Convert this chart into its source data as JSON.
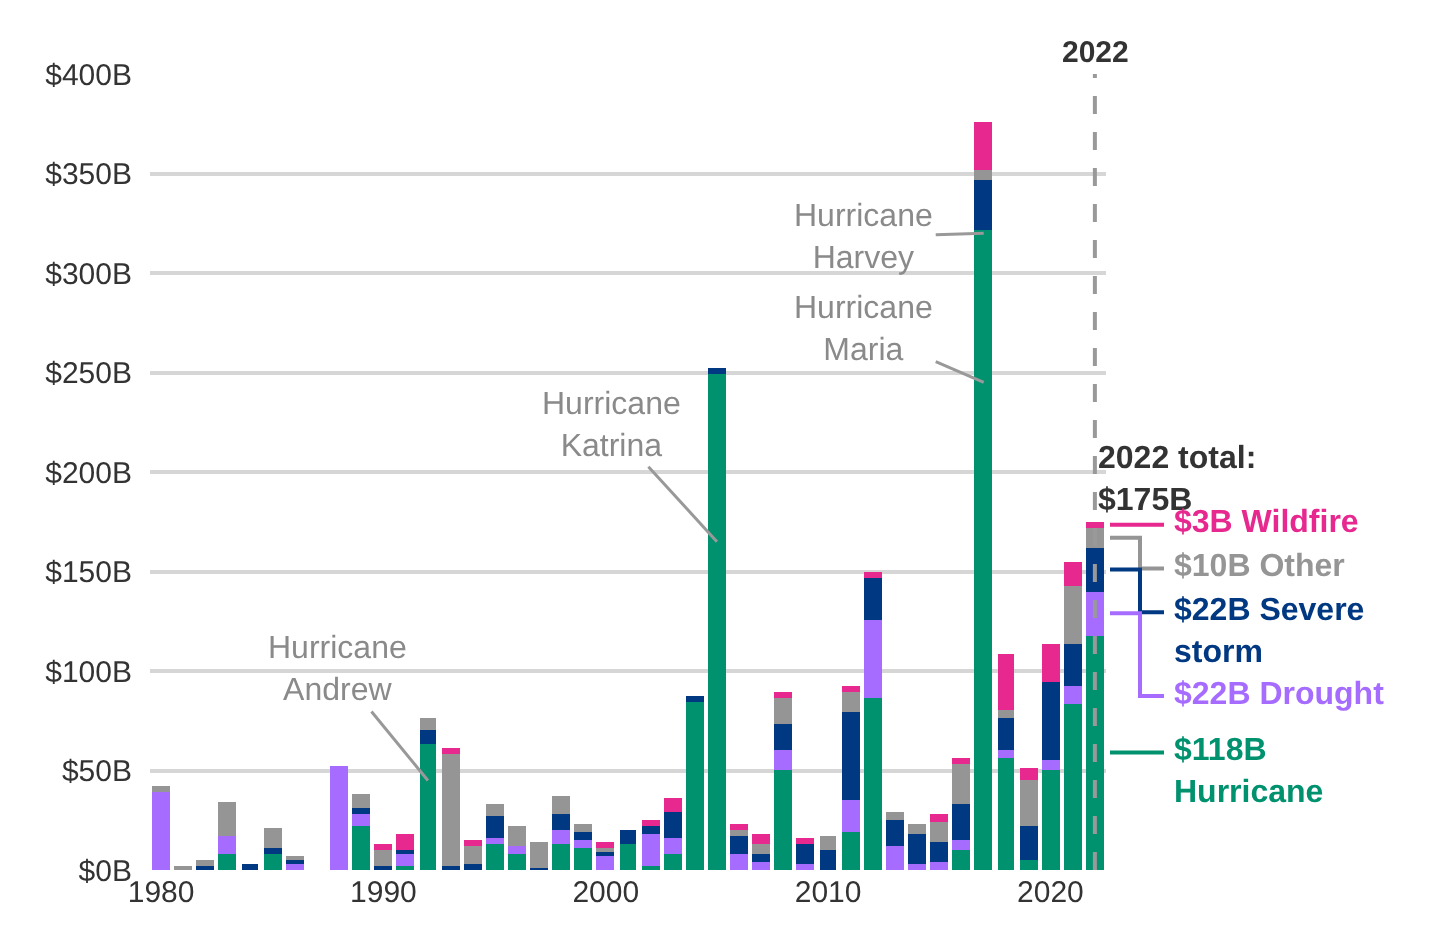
{
  "chart_data": {
    "type": "bar",
    "stacked": true,
    "x": [
      1980,
      1981,
      1982,
      1983,
      1984,
      1985,
      1986,
      1987,
      1988,
      1989,
      1990,
      1991,
      1992,
      1993,
      1994,
      1995,
      1996,
      1997,
      1998,
      1999,
      2000,
      2001,
      2002,
      2003,
      2004,
      2005,
      2006,
      2007,
      2008,
      2009,
      2010,
      2011,
      2012,
      2013,
      2014,
      2015,
      2016,
      2017,
      2018,
      2019,
      2020,
      2021,
      2022
    ],
    "series": [
      {
        "name": "Hurricane",
        "color": "#00916e",
        "values": [
          0,
          0,
          0,
          8,
          0,
          9,
          0,
          0,
          0,
          22,
          1,
          2,
          63,
          0,
          1,
          14,
          8,
          0,
          13,
          11,
          0,
          13,
          2,
          8,
          84,
          249,
          0,
          0,
          50,
          0,
          0,
          19,
          86,
          0,
          0,
          0,
          10,
          322,
          56,
          5,
          50,
          83,
          118
        ],
        "value_labels": [
          null,
          null,
          null,
          null,
          null,
          null,
          null,
          null,
          null,
          null,
          null,
          null,
          null,
          null,
          null,
          null,
          null,
          null,
          null,
          null,
          null,
          null,
          null,
          null,
          null,
          null,
          null,
          null,
          null,
          null,
          null,
          null,
          null,
          null,
          null,
          null,
          null,
          null,
          null,
          null,
          null,
          null,
          "$118B"
        ]
      },
      {
        "name": "Drought",
        "color": "#a66cff",
        "values": [
          39,
          0,
          0,
          9,
          0,
          0,
          4,
          0,
          52,
          7,
          0,
          7,
          0,
          0,
          0,
          2,
          4,
          0,
          7,
          4,
          8,
          0,
          16,
          8,
          0,
          0,
          8,
          4,
          10,
          3,
          0,
          16,
          40,
          12,
          3,
          4,
          5,
          0,
          4,
          0,
          5,
          9,
          22
        ],
        "value_labels": [
          null,
          null,
          null,
          null,
          null,
          null,
          null,
          null,
          null,
          null,
          null,
          null,
          null,
          null,
          null,
          null,
          null,
          null,
          null,
          null,
          null,
          null,
          null,
          null,
          null,
          null,
          null,
          null,
          null,
          null,
          null,
          null,
          null,
          null,
          null,
          null,
          null,
          null,
          null,
          null,
          null,
          null,
          "$22B"
        ]
      },
      {
        "name": "Severe storm",
        "color": "#003882",
        "values": [
          0,
          0,
          2,
          0,
          3,
          2,
          2,
          0,
          0,
          2,
          1,
          1,
          7,
          2,
          2,
          11,
          0,
          1,
          8,
          4,
          1,
          7,
          4,
          13,
          3,
          3,
          10,
          4,
          13,
          11,
          10,
          44,
          21,
          13,
          15,
          10,
          18,
          25,
          16,
          17,
          39,
          22,
          22
        ],
        "value_labels": [
          null,
          null,
          null,
          null,
          null,
          null,
          null,
          null,
          null,
          null,
          null,
          null,
          null,
          null,
          null,
          null,
          null,
          null,
          null,
          null,
          null,
          null,
          null,
          null,
          null,
          null,
          null,
          null,
          null,
          null,
          null,
          null,
          null,
          null,
          null,
          null,
          null,
          null,
          null,
          null,
          null,
          null,
          "$22B"
        ]
      },
      {
        "name": "Other",
        "color": "#959595",
        "values": [
          3,
          2,
          3,
          17,
          0,
          10,
          1,
          0,
          0,
          7,
          9,
          0,
          6,
          56,
          10,
          6,
          10,
          13,
          9,
          4,
          3,
          0,
          0,
          0,
          0,
          0,
          2,
          5,
          14,
          0,
          7,
          10,
          0,
          4,
          5,
          10,
          20,
          5,
          4,
          23,
          0,
          29,
          10
        ],
        "value_labels": [
          null,
          null,
          null,
          null,
          null,
          null,
          null,
          null,
          null,
          null,
          null,
          null,
          null,
          null,
          null,
          null,
          null,
          null,
          null,
          null,
          null,
          null,
          null,
          null,
          null,
          null,
          null,
          null,
          null,
          null,
          null,
          null,
          null,
          null,
          null,
          null,
          null,
          null,
          null,
          null,
          null,
          null,
          "$10B"
        ]
      },
      {
        "name": "Wildfire",
        "color": "#e6288f",
        "values": [
          0,
          0,
          0,
          0,
          0,
          0,
          0,
          0,
          0,
          0,
          2,
          8,
          0,
          3,
          2,
          0,
          0,
          0,
          0,
          0,
          2,
          0,
          3,
          7,
          0,
          0,
          3,
          5,
          2,
          2,
          0,
          3,
          3,
          0,
          0,
          4,
          3,
          24,
          29,
          6,
          20,
          12,
          3
        ],
        "value_labels": [
          null,
          null,
          null,
          null,
          null,
          null,
          null,
          null,
          null,
          null,
          null,
          null,
          null,
          null,
          null,
          null,
          null,
          null,
          null,
          null,
          null,
          null,
          null,
          null,
          null,
          null,
          null,
          null,
          null,
          null,
          null,
          null,
          null,
          null,
          null,
          null,
          null,
          null,
          null,
          null,
          null,
          null,
          "$3B"
        ]
      }
    ],
    "xlim": [
      1979.5,
      2022.5
    ],
    "xticks": [
      1980,
      1990,
      2000,
      2010,
      2020
    ],
    "ylim": [
      0,
      400
    ],
    "yticks": [
      {
        "value": 0,
        "label": "$0B"
      },
      {
        "value": 50,
        "label": "$50B"
      },
      {
        "value": 100,
        "label": "$100B"
      },
      {
        "value": 150,
        "label": "$150B"
      },
      {
        "value": 200,
        "label": "$200B"
      },
      {
        "value": 250,
        "label": "$250B"
      },
      {
        "value": 300,
        "label": "$300B"
      },
      {
        "value": 350,
        "label": "$350B"
      },
      {
        "value": 400,
        "label": "$400B"
      }
    ],
    "grid": "y",
    "legend": false,
    "ref_lines": [
      {
        "axis": "x",
        "value": 2022,
        "label": "2022",
        "color": "#999999",
        "line_style": "dashed"
      }
    ],
    "annotations": [
      {
        "text": "Hurricane\nAndrew",
        "x": 1992,
        "y": 45
      },
      {
        "text": "Hurricane\nKatrina",
        "x": 2005,
        "y": 165
      },
      {
        "text": "Hurricane\nHarvey",
        "x": 2017,
        "y": 320
      },
      {
        "text": "Hurricane\nMaria",
        "x": 2017,
        "y": 245
      },
      {
        "text": "2022 total:\n$175B",
        "x": 2022,
        "y": 175
      }
    ]
  }
}
